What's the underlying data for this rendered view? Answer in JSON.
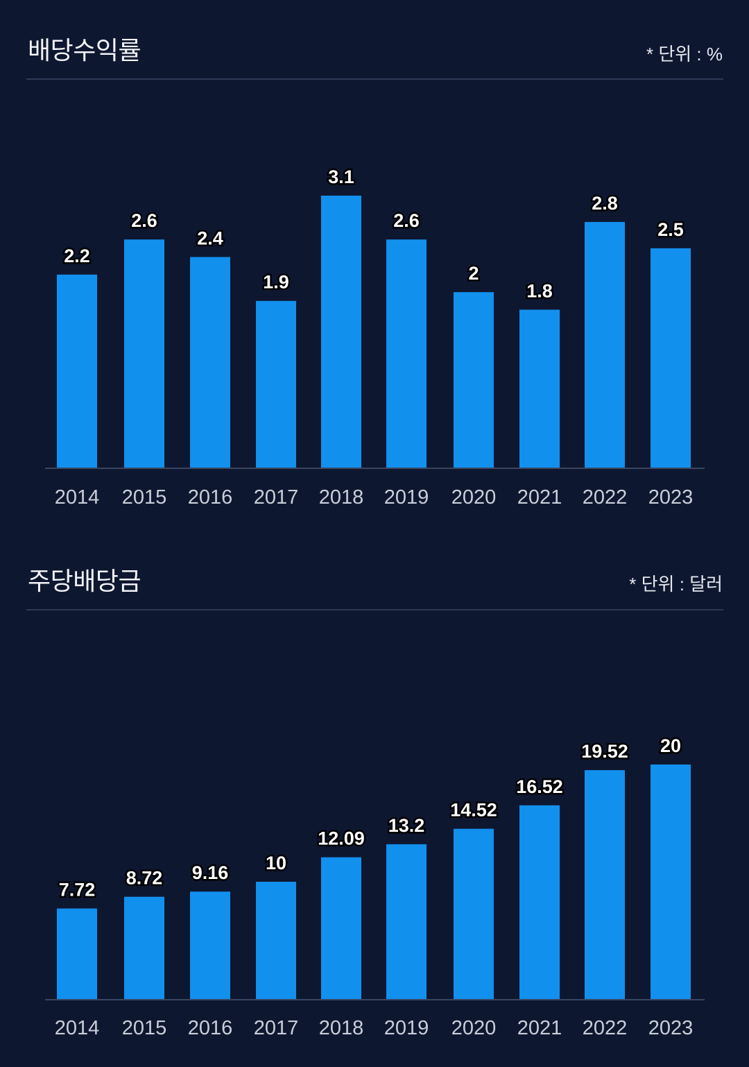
{
  "chart_data": [
    {
      "type": "bar",
      "title": "배당수익률",
      "unit_note": "* 단위 : %",
      "categories": [
        "2014",
        "2015",
        "2016",
        "2017",
        "2018",
        "2019",
        "2020",
        "2021",
        "2022",
        "2023"
      ],
      "values": [
        2.2,
        2.6,
        2.4,
        1.9,
        3.1,
        2.6,
        2,
        1.8,
        2.8,
        2.5
      ],
      "ylim": [
        0,
        3.1
      ],
      "grid": false,
      "colors": {
        "bar": "#1290ee",
        "background": "#0e1730"
      }
    },
    {
      "type": "bar",
      "title": "주당배당금",
      "unit_note": "* 단위 : 달러",
      "categories": [
        "2014",
        "2015",
        "2016",
        "2017",
        "2018",
        "2019",
        "2020",
        "2021",
        "2022",
        "2023"
      ],
      "values": [
        7.72,
        8.72,
        9.16,
        10,
        12.09,
        13.2,
        14.52,
        16.52,
        19.52,
        20
      ],
      "ylim": [
        0,
        20
      ],
      "grid": false,
      "colors": {
        "bar": "#1290ee",
        "background": "#0e1730"
      }
    }
  ]
}
